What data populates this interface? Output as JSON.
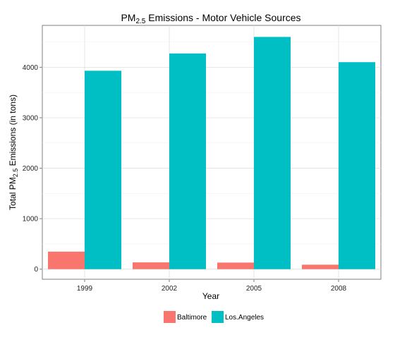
{
  "chart_data": {
    "type": "bar",
    "title_main": "PM",
    "title_sub": "2.5",
    "title_rest": " Emissions - Motor Vehicle Sources",
    "xlabel": "Year",
    "ylabel_pre": "Total PM",
    "ylabel_sub": "2.5",
    "ylabel_post": " Emissions (in tons)",
    "categories": [
      "1999",
      "2002",
      "2005",
      "2008"
    ],
    "series": [
      {
        "name": "Baltimore",
        "color": "#F8766D",
        "values": [
          347,
          134,
          130,
          88
        ]
      },
      {
        "name": "Los.Angeles",
        "color": "#00BFC4",
        "values": [
          3931,
          4274,
          4601,
          4101
        ]
      }
    ],
    "ylim": [
      -200,
      4830
    ],
    "yticks": [
      0,
      1000,
      2000,
      3000,
      4000
    ],
    "grid": true,
    "legend_position": "bottom"
  }
}
